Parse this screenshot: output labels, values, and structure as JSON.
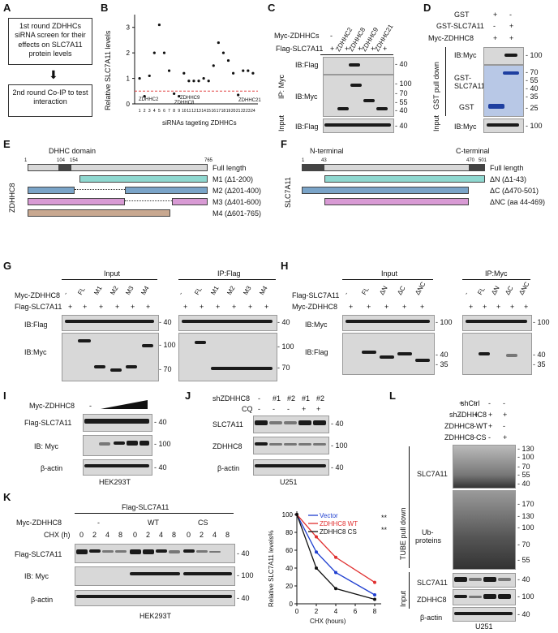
{
  "panels": {
    "A": "A",
    "B": "B",
    "C": "C",
    "D": "D",
    "E": "E",
    "F": "F",
    "G": "G",
    "H": "H",
    "I": "I",
    "J": "J",
    "K": "K",
    "L": "L"
  },
  "a": {
    "box1": "1st round ZDHHCs siRNA screen for their effects on SLC7A11 protein levels",
    "box2": "2nd round Co-IP to test interaction"
  },
  "b": {
    "ylabel": "Relative SLC7A11 levels",
    "xlabel": "siRNAs tageting ZDHHCs",
    "ann1": "ZDHHC2",
    "ann2": "ZDHHC9",
    "ann3": "ZDHHC8",
    "ann4": "ZDHHC21"
  },
  "chart_data": [
    {
      "type": "scatter",
      "title": "",
      "xlabel": "siRNAs tageting ZDHHCs",
      "ylabel": "Relative SLC7A11 levels",
      "x": [
        1,
        2,
        3,
        4,
        5,
        6,
        7,
        8,
        9,
        10,
        11,
        12,
        13,
        14,
        15,
        16,
        17,
        18,
        19,
        20,
        21,
        22,
        23,
        24
      ],
      "y": [
        1.0,
        0.3,
        1.1,
        2.0,
        3.1,
        2.0,
        1.3,
        0.4,
        0.3,
        1.2,
        0.9,
        0.9,
        0.9,
        1.0,
        0.9,
        1.5,
        2.4,
        2.0,
        1.7,
        1.2,
        0.35,
        1.3,
        1.3,
        1.2
      ],
      "xlim": [
        0,
        25
      ],
      "ylim": [
        0,
        3.5
      ],
      "threshold": 0.5
    },
    {
      "type": "line",
      "title": "",
      "xlabel": "CHX (hours)",
      "ylabel": "Relative SLC7A11 levels%",
      "x": [
        0,
        2,
        4,
        8
      ],
      "series": [
        {
          "name": "Vector",
          "values": [
            100,
            58,
            35,
            10
          ],
          "color": "#1f3fd0"
        },
        {
          "name": "ZDHHC8 WT",
          "values": [
            100,
            75,
            52,
            24
          ],
          "color": "#e03030"
        },
        {
          "name": "ZDHHC8 CS",
          "values": [
            100,
            40,
            17,
            5
          ],
          "color": "#111111"
        }
      ],
      "xlim": [
        0,
        8
      ],
      "ylim": [
        0,
        100
      ],
      "yticks": [
        0,
        20,
        40,
        60,
        80,
        100
      ],
      "xticks": [
        0,
        2,
        4,
        6,
        8
      ],
      "sig": [
        "**",
        "**"
      ]
    }
  ],
  "c": {
    "row1": "Myc-ZDHHCs",
    "row2": "Flag-SLC7A11",
    "ip": "IP: Myc",
    "input": "Input",
    "cols": [
      "ZDHHC2",
      "ZDHHC8",
      "ZDHHC9",
      "ZDHHC21"
    ],
    "minus": "-",
    "plus": "+",
    "ib1": "IB:Flag",
    "ib2": "IB:Myc",
    "ib3": "IB:Flag",
    "m40a": "- 40",
    "m100": "- 100",
    "m70": "- 70",
    "m55": "- 55",
    "m40b": "- 40",
    "m40c": "- 40"
  },
  "d": {
    "rows": [
      "GST",
      "GST-SLC7A11",
      "Myc-ZDHHC8"
    ],
    "pd": "GST pull down",
    "input": "Input",
    "ib1": "IB:Myc",
    "l1": "GST-",
    "l1b": "SLC7A11",
    "l2": "GST",
    "ib2": "IB:Myc",
    "m100": "- 100",
    "m70": "- 70",
    "m55": "- 55",
    "m40": "- 40",
    "m35": "- 35",
    "m25": "- 25",
    "m100b": "- 100"
  },
  "e": {
    "domain": "DHHC domain",
    "n1": "1",
    "n104": "104",
    "n154": "154",
    "n765": "765",
    "side": "ZDHHC8",
    "full": "Full length",
    "m1": "M1 (Δ1-200)",
    "m2": "M2 (Δ201-400)",
    "m3": "M3 (Δ401-600)",
    "m4": "M4 (Δ601-765)"
  },
  "f": {
    "nterm": "N-terminal",
    "cterm": "C-terminal",
    "n1": "1",
    "n43": "43",
    "n470": "470",
    "n501": "501",
    "side": "SLC7A11",
    "full": "Full length",
    "dn": "ΔN (Δ1-43)",
    "dc": "ΔC (Δ470-501)",
    "dnc": "ΔNC (aa 44-469)"
  },
  "g": {
    "input": "Input",
    "ip": "IP:Flag",
    "row1": "Myc-ZDHHC8",
    "row2": "Flag-SLC7A11",
    "cols": [
      "-",
      "FL",
      "M1",
      "M2",
      "M3",
      "M4"
    ],
    "ib1": "IB:Flag",
    "ib2": "IB:Myc",
    "m40": "- 40",
    "m100": "- 100",
    "m70": "- 70",
    "m40b": "- 40",
    "m100b": "- 100",
    "m70b": "- 70"
  },
  "h": {
    "input": "Input",
    "ip": "IP:Myc",
    "row1": "Flag-SLC7A11",
    "row2": "Myc-ZDHHC8",
    "cols": [
      "-",
      "FL",
      "ΔN",
      "ΔC",
      "ΔNC"
    ],
    "ib1": "IB:Myc",
    "ib2": "IB:Flag",
    "m100": "- 100",
    "m40": "- 40",
    "m35": "- 35",
    "m100b": "- 100",
    "m40b": "- 40",
    "m35b": "- 35"
  },
  "i": {
    "row1": "Myc-ZDHHC8",
    "l1": "Flag-SLC7A11",
    "l2": "IB: Myc",
    "l3": "β-actin",
    "cell": "HEK293T",
    "m40": "- 40",
    "m100": "- 100",
    "m40b": "- 40"
  },
  "j": {
    "row1": "shZDHHC8",
    "row2": "CQ",
    "cols": [
      "-",
      "#1",
      "#2",
      "#1",
      "#2"
    ],
    "cq": [
      "-",
      "-",
      "-",
      "+",
      "+"
    ],
    "l1": "SLC7A11",
    "l2": "ZDHHC8",
    "l3": "β-actin",
    "cell": "U251",
    "m40": "- 40",
    "m100": "- 100",
    "m40b": "- 40"
  },
  "k": {
    "top": "Flag-SLC7A11",
    "row1": "Myc-ZDHHC8",
    "row2": "CHX (h)",
    "g1": "-",
    "g2": "WT",
    "g3": "CS",
    "times": [
      "0",
      "2",
      "4",
      "8"
    ],
    "l1": "Flag-SLC7A11",
    "l2": "IB: Myc",
    "l3": "β-actin",
    "cell": "HEK293T",
    "m40": "- 40",
    "m100": "- 100",
    "m40b": "- 40",
    "ylabel": "Relative SLC7A11 levels%",
    "xlabel": "CHX (hours)",
    "leg1": "Vector",
    "leg2": "ZDHHC8 WT",
    "leg3": "ZDHHC8 CS"
  },
  "l": {
    "rows": [
      "shCtrl",
      "shZDHHC8",
      "ZDHHC8 WT",
      "ZDHHC8 CS"
    ],
    "pd": "TUBE pull down",
    "input": "Input",
    "l1": "SLC7A11",
    "l2": "Ub-",
    "l2b": "proteins",
    "l3": "SLC7A11",
    "l4": "ZDHHC8",
    "l5": "β-actin",
    "cell": "U251",
    "m130": "- 130",
    "m100": "- 100",
    "m70": "- 70",
    "m55": "- 55",
    "m40": "- 40",
    "m170": "- 170",
    "m130b": "- 130",
    "m100b": "- 100",
    "m70b": "- 70",
    "m55b": "- 55",
    "m40c": "- 40",
    "m100c": "- 100",
    "m40d": "- 40"
  }
}
